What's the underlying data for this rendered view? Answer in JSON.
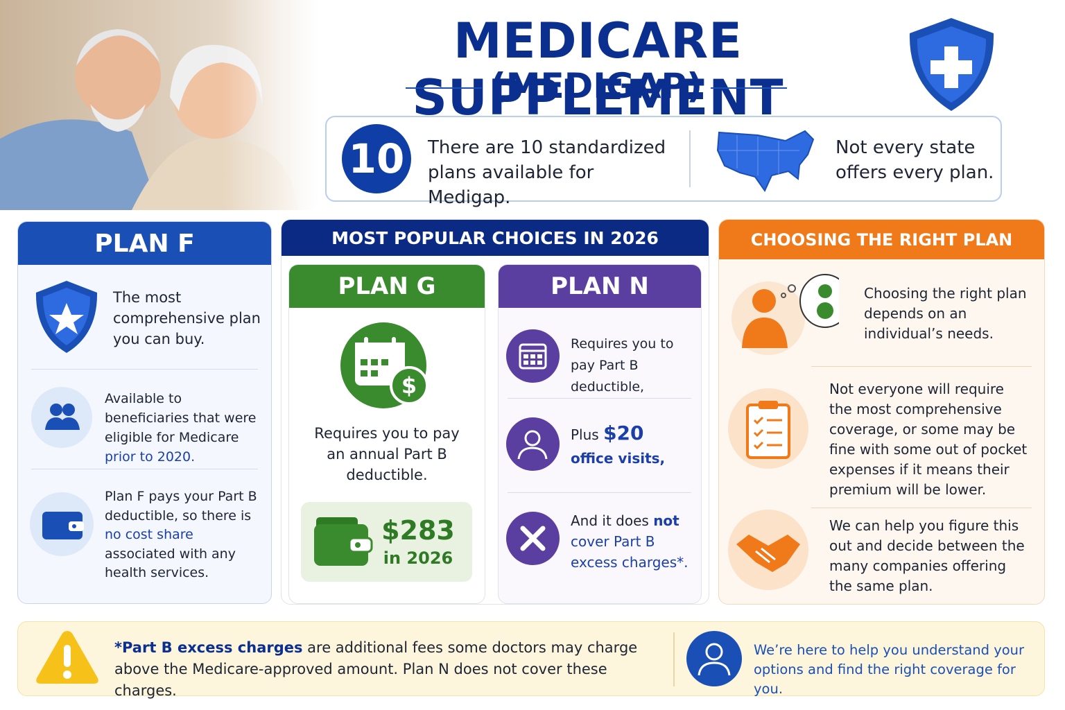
{
  "header": {
    "title": "MEDICARE SUPPLEMENT",
    "subtitle": "(MEDIGAP)"
  },
  "intro": {
    "number": "10",
    "plans_text": "There are 10 standardized plans available for Medigap.",
    "state_text": "Not every state offers every plan."
  },
  "plan_f": {
    "title": "PLAN F",
    "item_1": "The most comprehensive plan you can buy.",
    "item_2": {
      "text": "Available to beneficiaries that were eligible for Medicare ",
      "highlight": "prior to 2020."
    },
    "item_3": {
      "text": "Plan F pays your Part B deductible, so there is ",
      "highlight": "no cost share",
      "end": " associated with any health services."
    }
  },
  "popular": {
    "title": "MOST POPULAR CHOICES IN 2026",
    "plan_g": {
      "title": "PLAN G",
      "text": "Requires you to pay an annual Part B deductible.",
      "amount": "$283",
      "amount_year": "in 2026"
    },
    "plan_n": {
      "title": "PLAN N",
      "item_1": "Requires you to pay Part B deductible,",
      "item_2": {
        "text": "Plus ",
        "amount": "$20",
        "highlight": "office visits,"
      },
      "item_3": {
        "text": "And it does ",
        "emphasis": "not",
        "highlight": "cover Part B excess charges*."
      }
    }
  },
  "choosing": {
    "title": "CHOOSING THE RIGHT PLAN",
    "items": [
      "Choosing the right plan depends on an individual’s needs.",
      "Not everyone will require the most comprehensive coverage, or some may be fine with some out of pocket expenses if it means their premium will be lower.",
      "We can help you figure this out and decide between the many companies offering the same plan."
    ]
  },
  "footer": {
    "note_term": "*Part B excess charges",
    "note_text": " are additional fees some doctors may charge above the Medicare-approved amount. Plan N does not cover these charges.",
    "help_text": "We’re here to help you understand your options and find the right coverage for you."
  }
}
